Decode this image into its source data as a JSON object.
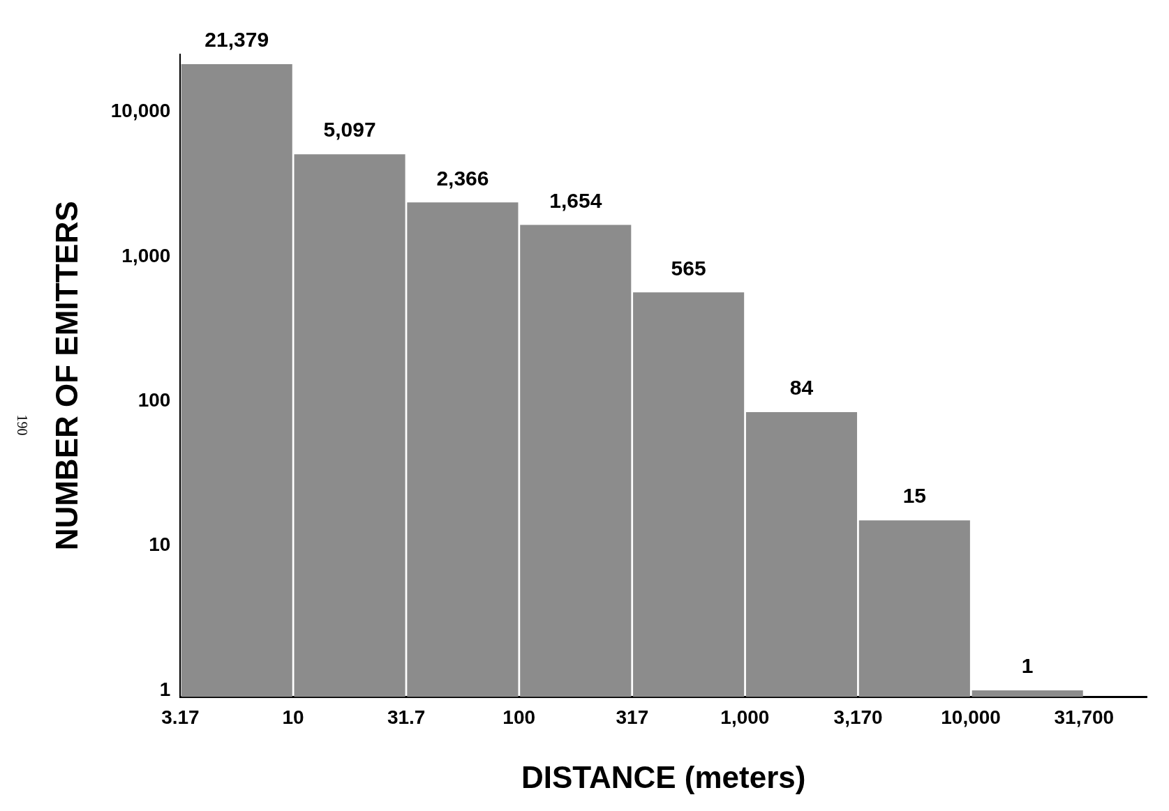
{
  "chart_data": {
    "type": "histogram",
    "xlabel": "DISTANCE (meters)",
    "ylabel": "NUMBER OF EMITTERS",
    "bins": [
      3.17,
      10,
      31.7,
      100,
      317,
      1000,
      3170,
      10000,
      31700
    ],
    "values": [
      21379,
      5097,
      2366,
      1654,
      565,
      84,
      15,
      1
    ],
    "value_labels": [
      "21,379",
      "5,097",
      "2,366",
      "1,654",
      "565",
      "84",
      "15",
      "1"
    ],
    "color": "#8c8c8c",
    "log": "xy",
    "xlim": [
      3.17,
      60000
    ],
    "xticks": [
      {
        "value": 3.17,
        "label": "3.17"
      },
      {
        "value": 10,
        "label": "10"
      },
      {
        "value": 31.7,
        "label": "31.7"
      },
      {
        "value": 100,
        "label": "100"
      },
      {
        "value": 317,
        "label": "317"
      },
      {
        "value": 1000,
        "label": "1,000"
      },
      {
        "value": 3170,
        "label": "3,170"
      },
      {
        "value": 10000,
        "label": "10,000"
      },
      {
        "value": 31700,
        "label": "31,700"
      }
    ],
    "ylim": [
      0.9,
      25000
    ],
    "yticks": [
      1,
      10,
      100,
      {
        "value": 1000,
        "label": "1,000"
      },
      {
        "value": 10000,
        "label": "10,000"
      }
    ],
    "grid": false,
    "legend": false,
    "annotations": [
      "190"
    ]
  }
}
